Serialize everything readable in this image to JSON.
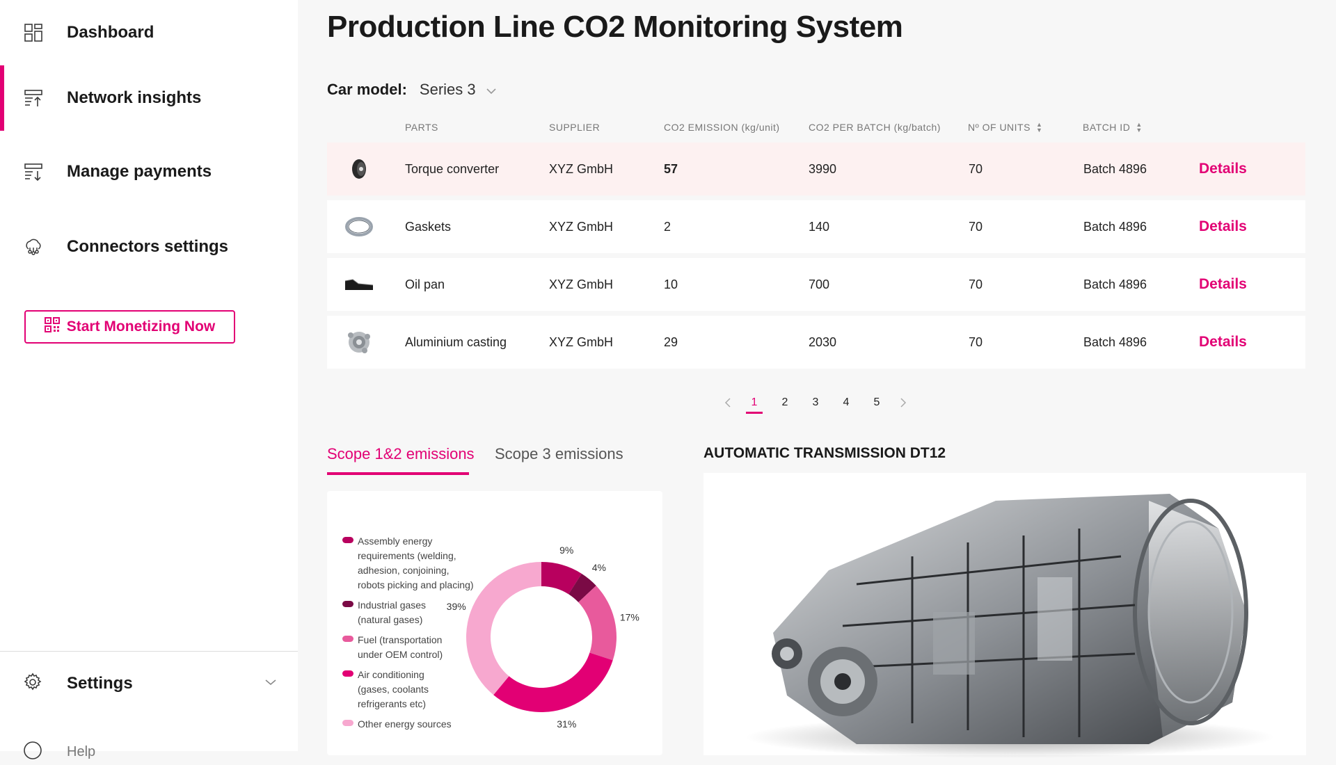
{
  "sidebar": {
    "items": [
      {
        "label": "Dashboard",
        "icon": "dashboard-icon"
      },
      {
        "label": "Network insights",
        "icon": "network-insights-icon",
        "active": true
      },
      {
        "label": "Manage payments",
        "icon": "payments-icon"
      },
      {
        "label": "Connectors settings",
        "icon": "connectors-icon"
      }
    ],
    "cta_label": "Start Monetizing Now",
    "settings_label": "Settings",
    "help_label": "Help"
  },
  "main": {
    "title": "Production Line CO2 Monitoring System",
    "car_model_label": "Car model:",
    "car_model_value": "Series 3",
    "columns": [
      "PARTS",
      "SUPPLIER",
      "CO2  EMISSION (kg/unit)",
      "CO2  PER BATCH (kg/batch)",
      "Nº OF UNITS",
      "BATCH ID"
    ],
    "rows": [
      {
        "part": "Torque converter",
        "supplier": "XYZ GmbH",
        "emission": "57",
        "per_batch": "3990",
        "units": "70",
        "batch": "Batch 4896",
        "details": "Details",
        "icon": "torque-converter-icon"
      },
      {
        "part": "Gaskets",
        "supplier": "XYZ GmbH",
        "emission": "2",
        "per_batch": "140",
        "units": "70",
        "batch": "Batch 4896",
        "details": "Details",
        "icon": "gasket-icon"
      },
      {
        "part": "Oil pan",
        "supplier": "XYZ GmbH",
        "emission": "10",
        "per_batch": "700",
        "units": "70",
        "batch": "Batch 4896",
        "details": "Details",
        "icon": "oil-pan-icon"
      },
      {
        "part": "Aluminium casting",
        "supplier": "XYZ GmbH",
        "emission": "29",
        "per_batch": "2030",
        "units": "70",
        "batch": "Batch 4896",
        "details": "Details",
        "icon": "aluminium-casting-icon"
      }
    ],
    "pagination": {
      "pages": [
        "1",
        "2",
        "3",
        "4",
        "5"
      ],
      "current": "1"
    },
    "tabs": [
      {
        "label": "Scope 1&2 emissions",
        "active": true
      },
      {
        "label": "Scope 3 emissions",
        "active": false
      }
    ],
    "product_title": "AUTOMATIC TRANSMISSION DT12"
  },
  "chart_data": {
    "type": "pie",
    "categories": [
      "Assembly energy requirements (welding, adhesion, conjoining, robots picking and placing)",
      "Industrial gases (natural gases)",
      "Fuel (transportation under OEM control)",
      "Air conditioning (gases, coolants refrigerants etc)",
      "Other energy sources"
    ],
    "legend": [
      {
        "l1": "Assembly energy",
        "l2": "requirements (welding,",
        "l3": "adhesion, conjoining,",
        "l4": "robots picking and placing)"
      },
      {
        "l1": "Industrial gases",
        "l2": "(natural gases)"
      },
      {
        "l1": "Fuel (transportation",
        "l2": "under OEM control)"
      },
      {
        "l1": "Air conditioning",
        "l2": "(gases, coolants",
        "l3": "refrigerants etc)"
      },
      {
        "l1": "Other energy sources"
      }
    ],
    "slices": [
      {
        "value": 9,
        "label": "9%",
        "color": "#b8005e"
      },
      {
        "value": 4,
        "label": "4%",
        "color": "#7a0a45"
      },
      {
        "value": 17,
        "label": "17%",
        "color": "#e85a9c"
      },
      {
        "value": 31,
        "label": "31%",
        "color": "#e20074"
      },
      {
        "value": 39,
        "label": "39%",
        "color": "#f7a8cf"
      }
    ],
    "legend_colors": [
      "#b8005e",
      "#7a0a45",
      "#e85a9c",
      "#e20074",
      "#f7a8cf"
    ],
    "legend_placement": "left"
  },
  "colors": {
    "accent": "#e20074",
    "highlight_row": "#fdf1f1"
  }
}
